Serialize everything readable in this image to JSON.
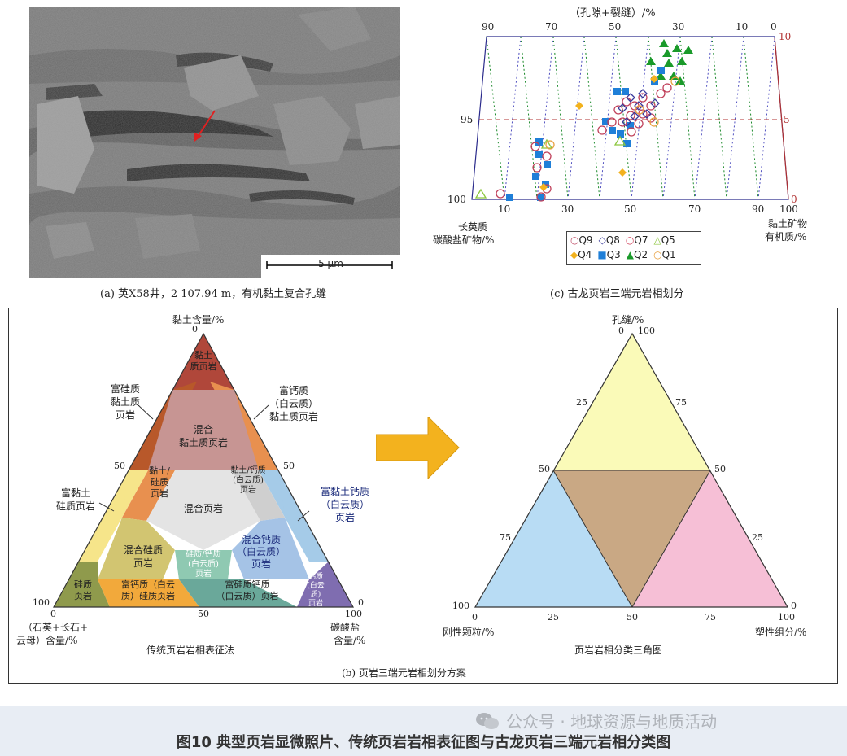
{
  "panel_a": {
    "caption": "(a) 英X58井，2 107.94 m，有机黏土复合孔缝",
    "scale_label": "5 μm"
  },
  "panel_c": {
    "caption": "(c) 古龙页岩三端元岩相划分",
    "top_axis_title": "（孔隙+裂缝）/%",
    "top_ticks": [
      "90",
      "70",
      "50",
      "30",
      "10",
      "0"
    ],
    "bottom_ticks": [
      "10",
      "30",
      "50",
      "70",
      "90",
      "100"
    ],
    "left_ticks": [
      "95",
      "100"
    ],
    "right_ticks": [
      "10",
      "5",
      "0"
    ],
    "left_label_1": "长英质",
    "left_label_2": "碳酸盐矿物/%",
    "right_label_1": "黏土矿物",
    "right_label_2": "有机质/%",
    "legend": [
      {
        "name": "Q9",
        "marker": "open-circle",
        "color": "#c0506a"
      },
      {
        "name": "Q8",
        "marker": "open-diamond",
        "color": "#3b3b9c"
      },
      {
        "name": "Q7",
        "marker": "open-circle",
        "color": "#d0405a"
      },
      {
        "name": "Q5",
        "marker": "open-triangle",
        "color": "#8cc63e"
      },
      {
        "name": "Q4",
        "marker": "filled-diamond",
        "color": "#f2b21e"
      },
      {
        "name": "Q3",
        "marker": "filled-square",
        "color": "#1f7fd8"
      },
      {
        "name": "Q2",
        "marker": "filled-triangle",
        "color": "#1a9a2a"
      },
      {
        "name": "Q1",
        "marker": "open-circle",
        "color": "#e8a040"
      }
    ]
  },
  "panel_b": {
    "caption": "(b) 页岩三端元岩相划分方案",
    "left_title": "传统页岩岩相表征法",
    "right_title": "页岩岩相分类三角图",
    "left_triangle": {
      "top_axis_1": "黏土含量/%",
      "top_value": "0",
      "mid_left_value": "50",
      "mid_right_value": "50",
      "bottom_left_value": "100",
      "bottom_right_value": "0",
      "bottom_ticks": [
        "0",
        "50",
        "100"
      ],
      "bottom_left_label_1": "（石英+长石+",
      "bottom_left_label_2": "云母）含量/%",
      "bottom_right_label_1": "碳酸盐",
      "bottom_right_label_2": "含量/%",
      "regions": [
        {
          "label_1": "黏土",
          "label_2": "质页岩",
          "color": "#b0473a"
        },
        {
          "label_1": "混合",
          "label_2": "黏土质页岩",
          "color": "#c79593"
        },
        {
          "label_1": "黏土/",
          "label_2": "硅质",
          "label_3": "页岩",
          "color": "#e8904f"
        },
        {
          "label_1": "混合页岩",
          "color": "#e4e4e4"
        },
        {
          "label_1": "黏土/钙质",
          "label_2": "(白云质)",
          "label_3": "页岩",
          "color": "#cfcfcf"
        },
        {
          "label_1": "混合硅质",
          "label_2": "页岩",
          "color": "#d2c571"
        },
        {
          "label_1": "硅质/钙质",
          "label_2": "(白云质)",
          "label_3": "页岩",
          "color": "#8fc9b2"
        },
        {
          "label_1": "混合钙质",
          "label_2": "（白云质）",
          "label_3": "页岩",
          "color": "#a5c3e6"
        },
        {
          "label_1": "硅质",
          "label_2": "页岩",
          "color": "#8f9a4c"
        },
        {
          "label_1": "富钙质（白云",
          "label_2": "质）硅质页岩",
          "color": "#f2a93b"
        },
        {
          "label_1": "富硅质钙质",
          "label_2": "（白云质）页岩",
          "color": "#6aa89a"
        },
        {
          "label_1": "钙质",
          "label_2": "(白云",
          "label_3": "质)",
          "label_4": "页岩",
          "color": "#7f6db0"
        }
      ],
      "callouts": {
        "top_left_1": "富硅质",
        "top_left_2": "黏土质",
        "top_left_3": "页岩",
        "top_right_1": "富钙质",
        "top_right_2": "（白云质）",
        "top_right_3": "黏土质页岩",
        "mid_left_1": "富黏土",
        "mid_left_2": "硅质页岩",
        "mid_right_1": "富黏土钙质",
        "mid_right_2": "（白云质）",
        "mid_right_3": "页岩"
      }
    },
    "right_triangle": {
      "top_axis": "孔缝/%",
      "top_value_left": "0",
      "top_value_right": "100",
      "left_25": "25",
      "right_75": "75",
      "mid_left": "50",
      "mid_right": "50",
      "left_75": "75",
      "right_25": "25",
      "bottom_left_value": "100",
      "bottom_right_value": "0",
      "bottom_ticks": [
        "0",
        "25",
        "50",
        "75",
        "100"
      ],
      "bottom_left_label": "刚性颗粒/%",
      "bottom_right_label": "塑性组分/%"
    }
  },
  "footer": {
    "watermark": "公众号 · 地球资源与地质活动",
    "figure_title": "图10 典型页岩显微照片、传统页岩岩相表征图与古龙页岩三端元岩相分类图"
  }
}
